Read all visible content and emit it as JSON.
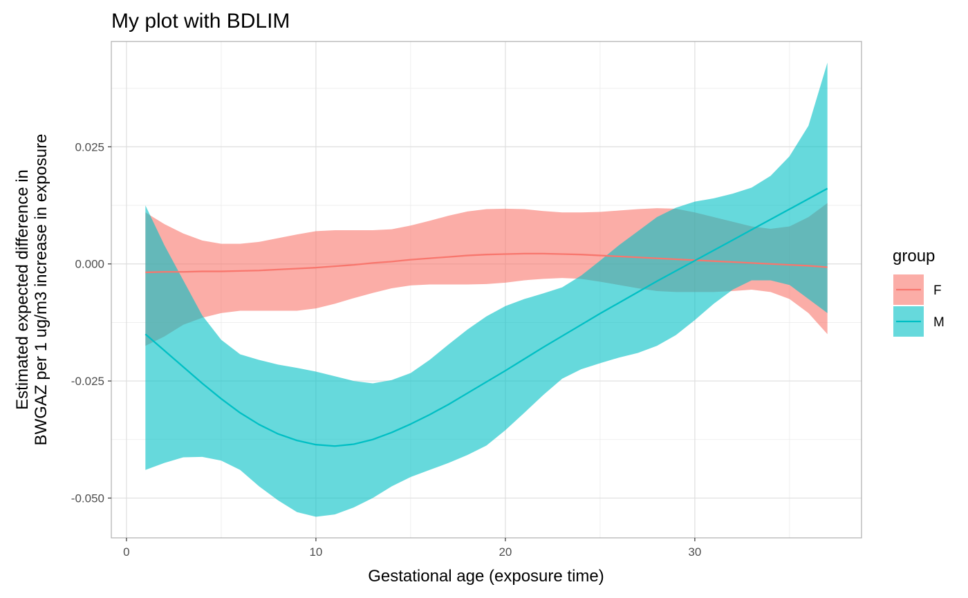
{
  "chart_data": {
    "type": "area",
    "title": "My plot with BDLIM",
    "xlabel": "Gestational age (exposure time)",
    "ylabel_lines": [
      "Estimated expected difference in",
      "BWGAZ per 1 ug/m3 increase in exposure"
    ],
    "xlim": [
      -0.8,
      38.8
    ],
    "ylim": [
      -0.0585,
      0.0475
    ],
    "x_ticks": [
      0,
      10,
      20,
      30
    ],
    "x_tick_labels": [
      "0",
      "10",
      "20",
      "30"
    ],
    "y_ticks": [
      -0.05,
      -0.025,
      0,
      0.025
    ],
    "y_tick_labels": [
      "-0.050",
      "-0.025",
      "0.000",
      "0.025"
    ],
    "grid": true,
    "legend": {
      "title": "group",
      "position": "right"
    },
    "series": [
      {
        "name": "F",
        "color": "#F8766D",
        "x": [
          1,
          2,
          3,
          4,
          5,
          6,
          7,
          8,
          9,
          10,
          11,
          12,
          13,
          14,
          15,
          16,
          17,
          18,
          19,
          20,
          21,
          22,
          23,
          24,
          25,
          26,
          27,
          28,
          29,
          30,
          31,
          32,
          33,
          34,
          35,
          36,
          37
        ],
        "mean": [
          -0.0018,
          -0.0017,
          -0.0017,
          -0.0016,
          -0.0016,
          -0.0015,
          -0.0014,
          -0.0012,
          -0.001,
          -0.0008,
          -0.0005,
          -0.0002,
          0.0002,
          0.0005,
          0.0009,
          0.0012,
          0.0015,
          0.0018,
          0.002,
          0.0021,
          0.0022,
          0.0022,
          0.0021,
          0.002,
          0.0018,
          0.0016,
          0.0014,
          0.0012,
          0.001,
          0.0008,
          0.0006,
          0.0004,
          0.0002,
          0.0,
          -0.0002,
          -0.0004,
          -0.0007
        ],
        "lower": [
          -0.0175,
          -0.0155,
          -0.013,
          -0.0115,
          -0.0105,
          -0.01,
          -0.01,
          -0.01,
          -0.01,
          -0.0095,
          -0.0085,
          -0.0073,
          -0.0062,
          -0.0052,
          -0.0046,
          -0.0044,
          -0.0044,
          -0.0044,
          -0.0043,
          -0.004,
          -0.0035,
          -0.0032,
          -0.003,
          -0.0032,
          -0.0038,
          -0.0045,
          -0.0052,
          -0.0058,
          -0.006,
          -0.006,
          -0.006,
          -0.0058,
          -0.0055,
          -0.006,
          -0.0075,
          -0.0105,
          -0.015
        ],
        "upper": [
          0.011,
          0.0085,
          0.0065,
          0.005,
          0.0043,
          0.0043,
          0.0047,
          0.0055,
          0.0063,
          0.007,
          0.0072,
          0.0072,
          0.0072,
          0.0074,
          0.0082,
          0.0092,
          0.0103,
          0.0112,
          0.0117,
          0.0118,
          0.0117,
          0.0113,
          0.011,
          0.011,
          0.0111,
          0.0114,
          0.0117,
          0.0119,
          0.0118,
          0.011,
          0.01,
          0.009,
          0.008,
          0.0075,
          0.008,
          0.01,
          0.013
        ]
      },
      {
        "name": "M",
        "color": "#00BFC4",
        "x": [
          1,
          2,
          3,
          4,
          5,
          6,
          7,
          8,
          9,
          10,
          11,
          12,
          13,
          14,
          15,
          16,
          17,
          18,
          19,
          20,
          21,
          22,
          23,
          24,
          25,
          26,
          27,
          28,
          29,
          30,
          31,
          32,
          33,
          34,
          35,
          36,
          37
        ],
        "mean": [
          -0.015,
          -0.0185,
          -0.022,
          -0.0255,
          -0.0288,
          -0.0318,
          -0.0343,
          -0.0363,
          -0.0377,
          -0.0386,
          -0.0389,
          -0.0385,
          -0.0375,
          -0.036,
          -0.0342,
          -0.0322,
          -0.03,
          -0.0276,
          -0.0252,
          -0.0228,
          -0.0203,
          -0.0178,
          -0.0154,
          -0.013,
          -0.0106,
          -0.0083,
          -0.006,
          -0.0037,
          -0.0015,
          0.0007,
          0.0029,
          0.0051,
          0.0073,
          0.0095,
          0.0117,
          0.0139,
          0.0161
        ],
        "lower": [
          -0.044,
          -0.0425,
          -0.0413,
          -0.0412,
          -0.042,
          -0.044,
          -0.0475,
          -0.0505,
          -0.053,
          -0.054,
          -0.0535,
          -0.052,
          -0.05,
          -0.0475,
          -0.0455,
          -0.044,
          -0.0425,
          -0.0408,
          -0.0388,
          -0.0355,
          -0.0318,
          -0.028,
          -0.0245,
          -0.0225,
          -0.0212,
          -0.02,
          -0.019,
          -0.0175,
          -0.0152,
          -0.012,
          -0.0085,
          -0.0055,
          -0.0035,
          -0.0035,
          -0.0045,
          -0.0075,
          -0.0105
        ],
        "upper": [
          0.0125,
          0.004,
          -0.0035,
          -0.011,
          -0.0162,
          -0.0193,
          -0.0205,
          -0.0215,
          -0.0222,
          -0.023,
          -0.024,
          -0.025,
          -0.0255,
          -0.0248,
          -0.0233,
          -0.0205,
          -0.0172,
          -0.014,
          -0.0112,
          -0.009,
          -0.0075,
          -0.0063,
          -0.005,
          -0.0025,
          0.0007,
          0.004,
          0.007,
          0.01,
          0.012,
          0.0133,
          0.014,
          0.015,
          0.0163,
          0.0188,
          0.023,
          0.0295,
          0.043
        ]
      }
    ]
  }
}
